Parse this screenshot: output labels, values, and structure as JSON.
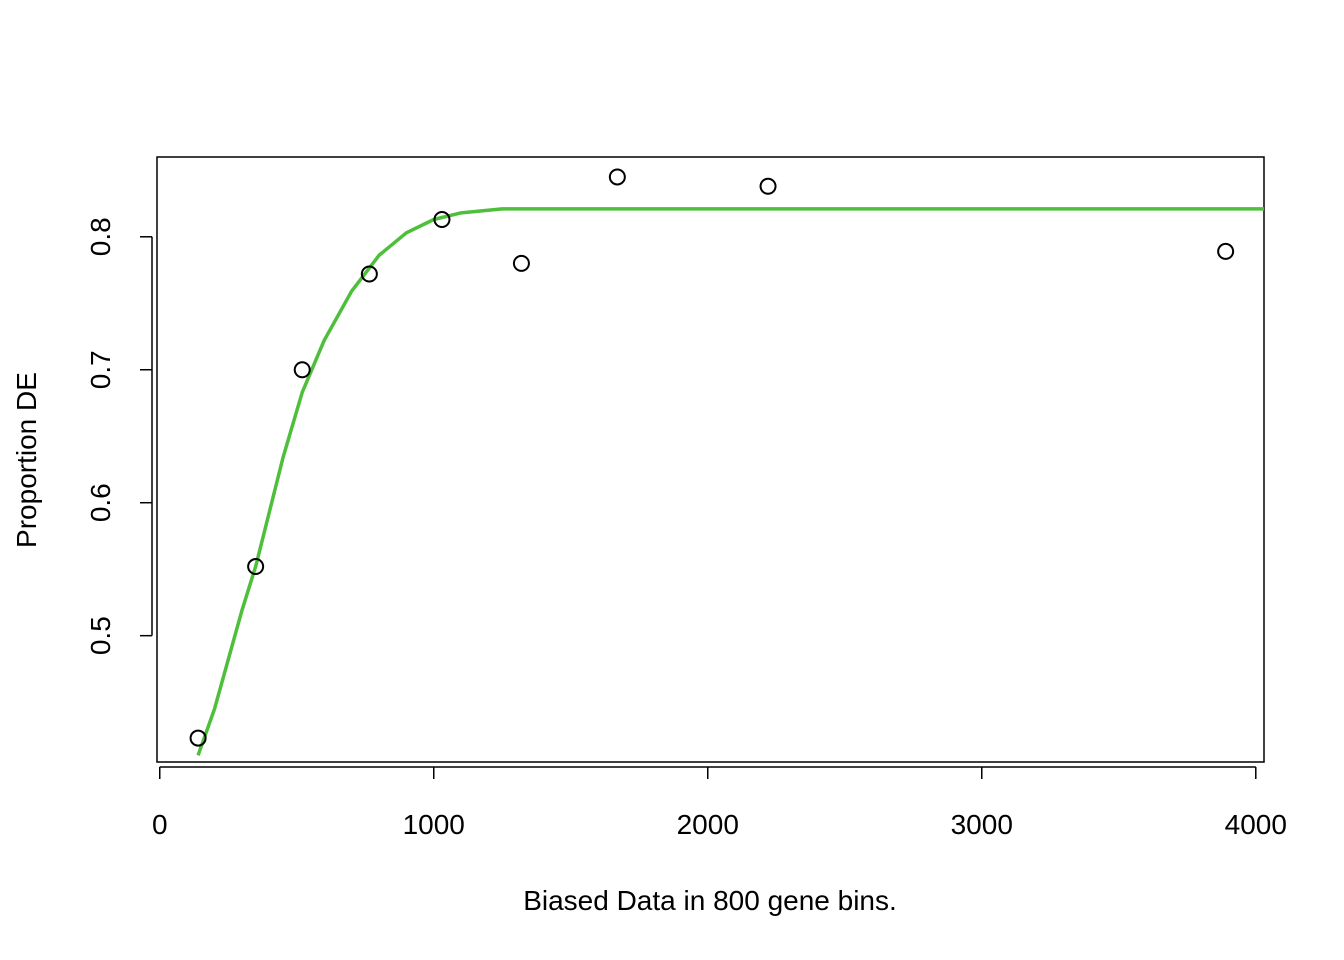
{
  "chart_data": {
    "type": "scatter",
    "title": "",
    "xlabel": "Biased Data in 800 gene bins.",
    "ylabel": "Proportion DE",
    "xlim": [
      -10,
      4030
    ],
    "ylim": [
      0.405,
      0.86
    ],
    "x_ticks": [
      0,
      1000,
      2000,
      3000,
      4000
    ],
    "y_ticks": [
      0.5,
      0.6,
      0.7,
      0.8
    ],
    "grid": false,
    "points": [
      {
        "x": 140,
        "y": 0.423
      },
      {
        "x": 350,
        "y": 0.552
      },
      {
        "x": 520,
        "y": 0.7
      },
      {
        "x": 765,
        "y": 0.772
      },
      {
        "x": 1030,
        "y": 0.813
      },
      {
        "x": 1320,
        "y": 0.78
      },
      {
        "x": 1670,
        "y": 0.845
      },
      {
        "x": 2220,
        "y": 0.838
      },
      {
        "x": 3890,
        "y": 0.789
      }
    ],
    "fit_line": {
      "color": "#4dbf3a",
      "points": [
        {
          "x": 140,
          "y": 0.41
        },
        {
          "x": 200,
          "y": 0.445
        },
        {
          "x": 300,
          "y": 0.519
        },
        {
          "x": 350,
          "y": 0.552
        },
        {
          "x": 450,
          "y": 0.634
        },
        {
          "x": 520,
          "y": 0.683
        },
        {
          "x": 600,
          "y": 0.722
        },
        {
          "x": 700,
          "y": 0.759
        },
        {
          "x": 800,
          "y": 0.786
        },
        {
          "x": 900,
          "y": 0.803
        },
        {
          "x": 1000,
          "y": 0.813
        },
        {
          "x": 1100,
          "y": 0.818
        },
        {
          "x": 1250,
          "y": 0.821
        },
        {
          "x": 1500,
          "y": 0.821
        },
        {
          "x": 2000,
          "y": 0.821
        },
        {
          "x": 3000,
          "y": 0.821
        },
        {
          "x": 4030,
          "y": 0.821
        }
      ]
    },
    "point_color": "#000000"
  }
}
